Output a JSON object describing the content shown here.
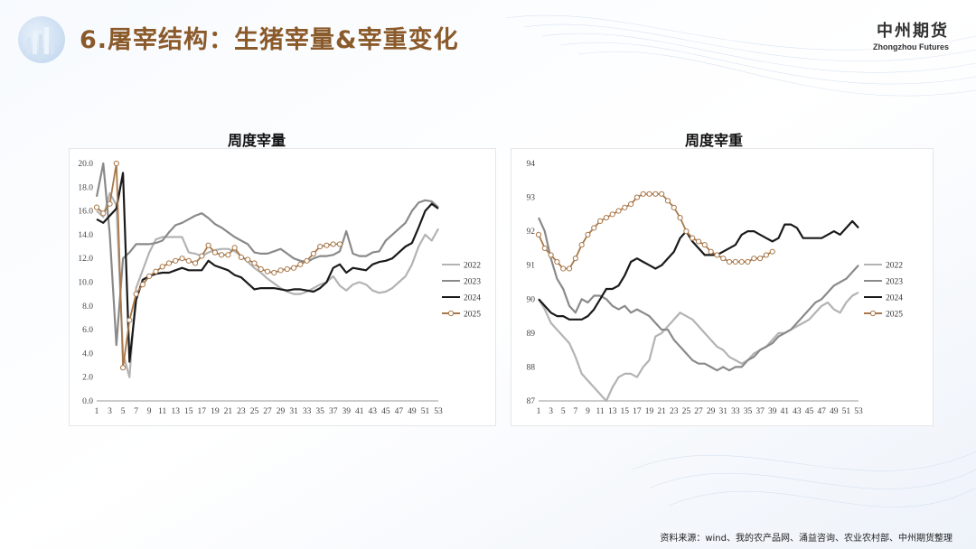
{
  "header": {
    "title": "6.屠宰结构：生猪宰量&宰重变化",
    "brand_cn": "中州期货",
    "brand_en": "Zhongzhou Futures"
  },
  "source_note": "资料来源：wind、我的农产品网、涌益咨询、农业农村部、中州期货整理",
  "colors": {
    "2022": "#b3b3b3",
    "2023": "#8a8a8a",
    "2024": "#1a1a1a",
    "2025": "#a9784a",
    "accent": "#8b5a2b"
  },
  "chart_data": [
    {
      "type": "line",
      "title": "周度宰量",
      "xlabel": "",
      "ylabel": "",
      "ylim": [
        0,
        20
      ],
      "yticks": [
        "0.0",
        "2.0",
        "4.0",
        "6.0",
        "8.0",
        "10.0",
        "12.0",
        "14.0",
        "16.0",
        "18.0",
        "20.0"
      ],
      "xticks": [
        "1",
        "3",
        "5",
        "7",
        "9",
        "11",
        "13",
        "15",
        "17",
        "19",
        "21",
        "23",
        "25",
        "27",
        "29",
        "31",
        "33",
        "35",
        "37",
        "39",
        "41",
        "43",
        "45",
        "47",
        "49",
        "51",
        "53"
      ],
      "x_range": [
        1,
        53
      ],
      "legend_position": "right",
      "series": [
        {
          "name": "2022",
          "x": [
            1,
            2,
            3,
            4,
            5,
            6,
            7,
            8,
            9,
            10,
            11,
            12,
            13,
            14,
            15,
            16,
            17,
            18,
            19,
            20,
            21,
            22,
            23,
            24,
            25,
            26,
            27,
            28,
            29,
            30,
            31,
            32,
            33,
            34,
            35,
            36,
            37,
            38,
            39,
            40,
            41,
            42,
            43,
            44,
            45,
            46,
            47,
            48,
            49,
            50,
            51,
            52,
            53
          ],
          "values": [
            16.0,
            15.5,
            17.5,
            16.5,
            4.0,
            2.0,
            9.5,
            11.0,
            12.5,
            13.6,
            13.8,
            13.8,
            13.8,
            13.8,
            12.5,
            12.4,
            12.2,
            12.5,
            12.7,
            12.8,
            12.8,
            12.6,
            12.2,
            11.7,
            11.2,
            10.8,
            10.3,
            9.9,
            9.5,
            9.2,
            9.0,
            9.0,
            9.2,
            9.5,
            9.8,
            10.0,
            10.5,
            9.7,
            9.3,
            9.8,
            10.0,
            9.8,
            9.3,
            9.1,
            9.2,
            9.5,
            10.0,
            10.5,
            11.5,
            13.0,
            14.0,
            13.5,
            14.5
          ]
        },
        {
          "name": "2023",
          "x": [
            1,
            2,
            3,
            4,
            5,
            6,
            7,
            8,
            9,
            10,
            11,
            12,
            13,
            14,
            15,
            16,
            17,
            18,
            19,
            20,
            21,
            22,
            23,
            24,
            25,
            26,
            27,
            28,
            29,
            30,
            31,
            32,
            33,
            34,
            35,
            36,
            37,
            38,
            39,
            40,
            41,
            42,
            43,
            44,
            45,
            46,
            47,
            48,
            49,
            50,
            51,
            52,
            53
          ],
          "values": [
            17.2,
            20.0,
            14.0,
            4.7,
            12.0,
            12.5,
            13.2,
            13.2,
            13.2,
            13.3,
            13.5,
            14.2,
            14.8,
            15.0,
            15.3,
            15.6,
            15.8,
            15.4,
            14.9,
            14.6,
            14.2,
            13.8,
            13.5,
            13.2,
            12.5,
            12.4,
            12.4,
            12.6,
            12.8,
            12.4,
            12.0,
            11.8,
            11.7,
            12.0,
            12.2,
            12.2,
            12.3,
            12.6,
            14.3,
            12.4,
            12.2,
            12.2,
            12.5,
            12.6,
            13.5,
            14.0,
            14.5,
            15.0,
            16.0,
            16.7,
            16.9,
            16.8,
            16.3
          ]
        },
        {
          "name": "2024",
          "x": [
            1,
            2,
            3,
            4,
            5,
            6,
            7,
            8,
            9,
            10,
            11,
            12,
            13,
            14,
            15,
            16,
            17,
            18,
            19,
            20,
            21,
            22,
            23,
            24,
            25,
            26,
            27,
            28,
            29,
            30,
            31,
            32,
            33,
            34,
            35,
            36,
            37,
            38,
            39,
            40,
            41,
            42,
            43,
            44,
            45,
            46,
            47,
            48,
            49,
            50,
            51,
            52,
            53
          ],
          "values": [
            15.3,
            15.0,
            15.6,
            16.2,
            19.2,
            3.3,
            8.5,
            10.2,
            10.5,
            10.7,
            10.8,
            10.8,
            11.0,
            11.2,
            11.0,
            11.0,
            11.0,
            11.8,
            11.4,
            11.2,
            11.0,
            10.6,
            10.4,
            9.9,
            9.4,
            9.5,
            9.5,
            9.5,
            9.4,
            9.3,
            9.4,
            9.4,
            9.3,
            9.2,
            9.5,
            10.0,
            11.2,
            11.5,
            10.8,
            11.2,
            11.1,
            11.0,
            11.5,
            11.7,
            11.8,
            12.0,
            12.5,
            13.0,
            13.3,
            14.6,
            16.0,
            16.6,
            16.2
          ]
        },
        {
          "name": "2025",
          "x": [
            1,
            2,
            3,
            4,
            5,
            6,
            7,
            8,
            9,
            10,
            11,
            12,
            13,
            14,
            15,
            16,
            17,
            18,
            19,
            20,
            21,
            22,
            23,
            24,
            25,
            26,
            27,
            28,
            29,
            30,
            31,
            32,
            33,
            34,
            35,
            36,
            37,
            38
          ],
          "values": [
            16.3,
            15.8,
            16.6,
            20.0,
            2.8,
            6.8,
            9.0,
            9.8,
            10.5,
            10.9,
            11.3,
            11.6,
            11.8,
            12.0,
            11.8,
            11.6,
            12.2,
            13.1,
            12.5,
            12.3,
            12.3,
            12.9,
            12.1,
            11.9,
            11.6,
            11.1,
            10.9,
            10.8,
            11.0,
            11.1,
            11.2,
            11.5,
            11.8,
            12.4,
            13.0,
            13.1,
            13.2,
            13.2
          ],
          "markers": true
        }
      ]
    },
    {
      "type": "line",
      "title": "周度宰重",
      "xlabel": "",
      "ylabel": "",
      "ylim": [
        87,
        94
      ],
      "yticks": [
        "87",
        "88",
        "89",
        "90",
        "91",
        "92",
        "93",
        "94"
      ],
      "xticks": [
        "1",
        "3",
        "5",
        "7",
        "9",
        "11",
        "13",
        "15",
        "17",
        "19",
        "21",
        "23",
        "25",
        "27",
        "29",
        "31",
        "33",
        "35",
        "37",
        "39",
        "41",
        "43",
        "45",
        "47",
        "49",
        "51",
        "53"
      ],
      "x_range": [
        1,
        53
      ],
      "legend_position": "right",
      "series": [
        {
          "name": "2022",
          "x": [
            1,
            2,
            3,
            4,
            5,
            6,
            7,
            8,
            9,
            10,
            11,
            12,
            13,
            14,
            15,
            16,
            17,
            18,
            19,
            20,
            21,
            22,
            23,
            24,
            25,
            26,
            27,
            28,
            29,
            30,
            31,
            32,
            33,
            34,
            35,
            36,
            37,
            38,
            39,
            40,
            41,
            42,
            43,
            44,
            45,
            46,
            47,
            48,
            49,
            50,
            51,
            52,
            53
          ],
          "values": [
            90.0,
            89.7,
            89.3,
            89.1,
            88.9,
            88.7,
            88.3,
            87.8,
            87.6,
            87.4,
            87.2,
            87.0,
            87.4,
            87.7,
            87.8,
            87.8,
            87.7,
            88.0,
            88.2,
            88.9,
            89.0,
            89.2,
            89.4,
            89.6,
            89.5,
            89.4,
            89.2,
            89.0,
            88.8,
            88.6,
            88.5,
            88.3,
            88.2,
            88.1,
            88.2,
            88.4,
            88.5,
            88.6,
            88.8,
            89.0,
            89.0,
            89.1,
            89.2,
            89.3,
            89.4,
            89.6,
            89.8,
            89.9,
            89.7,
            89.6,
            89.9,
            90.1,
            90.2
          ]
        },
        {
          "name": "2023",
          "x": [
            1,
            2,
            3,
            4,
            5,
            6,
            7,
            8,
            9,
            10,
            11,
            12,
            13,
            14,
            15,
            16,
            17,
            18,
            19,
            20,
            21,
            22,
            23,
            24,
            25,
            26,
            27,
            28,
            29,
            30,
            31,
            32,
            33,
            34,
            35,
            36,
            37,
            38,
            39,
            40,
            41,
            42,
            43,
            44,
            45,
            46,
            47,
            48,
            49,
            50,
            51,
            52,
            53
          ],
          "values": [
            92.4,
            92.0,
            91.2,
            90.6,
            90.3,
            89.8,
            89.6,
            90.0,
            89.9,
            90.1,
            90.1,
            90.0,
            89.8,
            89.7,
            89.8,
            89.6,
            89.7,
            89.6,
            89.5,
            89.3,
            89.1,
            89.1,
            88.8,
            88.6,
            88.4,
            88.2,
            88.1,
            88.1,
            88.0,
            87.9,
            88.0,
            87.9,
            88.0,
            88.0,
            88.2,
            88.3,
            88.5,
            88.6,
            88.7,
            88.9,
            89.0,
            89.1,
            89.3,
            89.5,
            89.7,
            89.9,
            90.0,
            90.2,
            90.4,
            90.5,
            90.6,
            90.8,
            91.0
          ]
        },
        {
          "name": "2024",
          "x": [
            1,
            2,
            3,
            4,
            5,
            6,
            7,
            8,
            9,
            10,
            11,
            12,
            13,
            14,
            15,
            16,
            17,
            18,
            19,
            20,
            21,
            22,
            23,
            24,
            25,
            26,
            27,
            28,
            29,
            30,
            31,
            32,
            33,
            34,
            35,
            36,
            37,
            38,
            39,
            40,
            41,
            42,
            43,
            44,
            45,
            46,
            47,
            48,
            49,
            50,
            51,
            52,
            53
          ],
          "values": [
            90.0,
            89.8,
            89.6,
            89.5,
            89.5,
            89.4,
            89.4,
            89.4,
            89.5,
            89.7,
            90.0,
            90.3,
            90.3,
            90.4,
            90.7,
            91.1,
            91.2,
            91.1,
            91.0,
            90.9,
            91.0,
            91.2,
            91.4,
            91.8,
            92.0,
            91.7,
            91.5,
            91.3,
            91.3,
            91.3,
            91.4,
            91.5,
            91.6,
            91.9,
            92.0,
            92.0,
            91.9,
            91.8,
            91.7,
            91.8,
            92.2,
            92.2,
            92.1,
            91.8,
            91.8,
            91.8,
            91.8,
            91.9,
            92.0,
            91.9,
            92.1,
            92.3,
            92.1
          ]
        },
        {
          "name": "2025",
          "x": [
            1,
            2,
            3,
            4,
            5,
            6,
            7,
            8,
            9,
            10,
            11,
            12,
            13,
            14,
            15,
            16,
            17,
            18,
            19,
            20,
            21,
            22,
            23,
            24,
            25,
            26,
            27,
            28,
            29,
            30,
            31,
            32,
            33,
            34,
            35,
            36,
            37,
            38,
            39
          ],
          "values": [
            91.9,
            91.5,
            91.3,
            91.1,
            90.9,
            90.9,
            91.2,
            91.6,
            91.9,
            92.1,
            92.3,
            92.4,
            92.5,
            92.6,
            92.7,
            92.8,
            93.0,
            93.1,
            93.1,
            93.1,
            93.1,
            92.9,
            92.7,
            92.4,
            92.0,
            91.8,
            91.7,
            91.6,
            91.4,
            91.3,
            91.2,
            91.1,
            91.1,
            91.1,
            91.1,
            91.2,
            91.2,
            91.3,
            91.4
          ],
          "markers": true
        }
      ]
    }
  ]
}
